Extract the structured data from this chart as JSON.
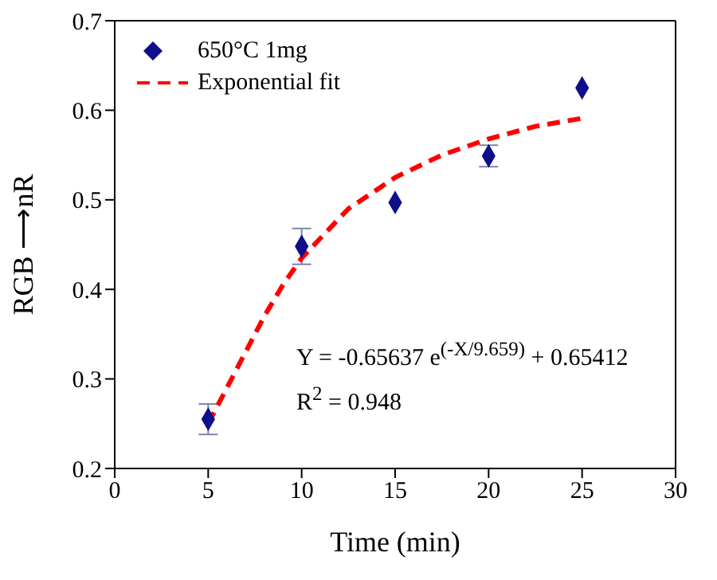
{
  "chart_data": {
    "type": "scatter",
    "xlabel": "Time (min)",
    "ylabel": "RGB ⟶nR",
    "xlim": [
      0,
      30
    ],
    "xticks": [
      0,
      5,
      10,
      15,
      20,
      25,
      30
    ],
    "ylim": [
      0.2,
      0.7
    ],
    "yticks": [
      0.2,
      0.3,
      0.4,
      0.5,
      0.6,
      0.7
    ],
    "grid": false,
    "legend": "top left",
    "series": [
      {
        "name": "650°C 1mg",
        "color": "#0f0f8a",
        "marker": "diamond",
        "x": [
          5,
          10,
          15,
          20,
          25
        ],
        "values": [
          0.255,
          0.448,
          0.497,
          0.549,
          0.625
        ],
        "errors": [
          0.017,
          0.02,
          null,
          0.012,
          null
        ]
      },
      {
        "name": "Exponential fit",
        "type": "line",
        "color": "#ff0000",
        "line_style": "dashed",
        "marker": "none",
        "x": [
          5,
          6,
          7,
          8,
          9,
          10,
          12.5,
          15,
          17.5,
          20,
          22.5,
          25
        ],
        "values": [
          0.25,
          0.29,
          0.33,
          0.37,
          0.405,
          0.435,
          0.49,
          0.525,
          0.55,
          0.568,
          0.582,
          0.591
        ]
      }
    ],
    "annotations": [
      "Y = -0.65637 e$^{(-X/9.659)}$ + 0.65412",
      "R$^{2}$ = 0.948"
    ]
  }
}
